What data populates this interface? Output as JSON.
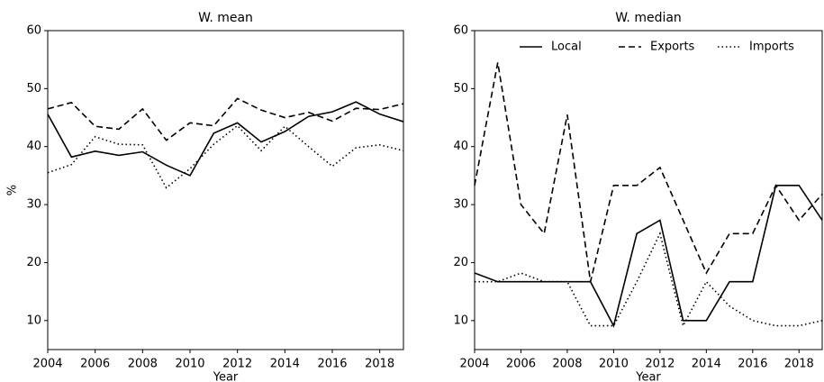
{
  "chart_data": [
    {
      "type": "line",
      "title": "W. mean",
      "xlabel": "Year",
      "ylabel": "%",
      "x": [
        2004,
        2005,
        2006,
        2007,
        2008,
        2009,
        2010,
        2011,
        2012,
        2013,
        2014,
        2015,
        2016,
        2017,
        2018,
        2019
      ],
      "xlim": [
        2004,
        2019
      ],
      "xticks": [
        2004,
        2006,
        2008,
        2010,
        2012,
        2014,
        2016,
        2018
      ],
      "ylim": [
        5,
        60
      ],
      "yticks": [
        10,
        20,
        30,
        40,
        50,
        60
      ],
      "series": [
        {
          "name": "Local",
          "color": "#000000",
          "linestyle": "solid",
          "values": [
            45.6,
            38.2,
            39.2,
            38.5,
            39.1,
            36.8,
            35.0,
            42.3,
            44.1,
            40.8,
            42.6,
            45.2,
            46.0,
            47.7,
            45.6,
            44.3
          ]
        },
        {
          "name": "Exports",
          "color": "#000000",
          "linestyle": "dashed",
          "values": [
            46.5,
            47.6,
            43.5,
            43.0,
            46.5,
            41.1,
            44.1,
            43.6,
            48.3,
            46.3,
            45.0,
            45.9,
            44.4,
            46.6,
            46.4,
            47.4
          ]
        },
        {
          "name": "Imports",
          "color": "#000000",
          "linestyle": "dotted",
          "values": [
            35.5,
            36.9,
            41.7,
            40.4,
            40.3,
            32.9,
            36.2,
            40.4,
            43.6,
            39.3,
            43.5,
            40.0,
            36.6,
            39.8,
            40.3,
            39.3
          ]
        }
      ]
    },
    {
      "type": "line",
      "title": "W. median",
      "xlabel": "Year",
      "legend": "upper center",
      "x": [
        2004,
        2005,
        2006,
        2007,
        2008,
        2009,
        2010,
        2011,
        2012,
        2013,
        2014,
        2015,
        2016,
        2017,
        2018,
        2019
      ],
      "xlim": [
        2004,
        2019
      ],
      "xticks": [
        2004,
        2006,
        2008,
        2010,
        2012,
        2014,
        2016,
        2018
      ],
      "ylim": [
        5,
        60
      ],
      "yticks": [
        10,
        20,
        30,
        40,
        50,
        60
      ],
      "series": [
        {
          "name": "Local",
          "color": "#000000",
          "linestyle": "solid",
          "values": [
            18.2,
            16.7,
            16.7,
            16.7,
            16.7,
            16.7,
            9.1,
            25.0,
            27.3,
            10.0,
            10.0,
            16.7,
            16.7,
            33.3,
            33.3,
            27.3
          ]
        },
        {
          "name": "Exports",
          "color": "#000000",
          "linestyle": "dashed",
          "values": [
            33.3,
            54.5,
            30.0,
            25.0,
            45.5,
            16.7,
            33.3,
            33.3,
            36.4,
            27.3,
            18.2,
            25.0,
            25.0,
            33.3,
            27.3,
            31.8
          ]
        },
        {
          "name": "Imports",
          "color": "#000000",
          "linestyle": "dotted",
          "values": [
            16.7,
            16.7,
            18.2,
            16.7,
            16.7,
            9.1,
            9.1,
            16.7,
            25.0,
            9.1,
            16.7,
            12.5,
            10.0,
            9.1,
            9.1,
            10.0
          ]
        }
      ]
    }
  ]
}
